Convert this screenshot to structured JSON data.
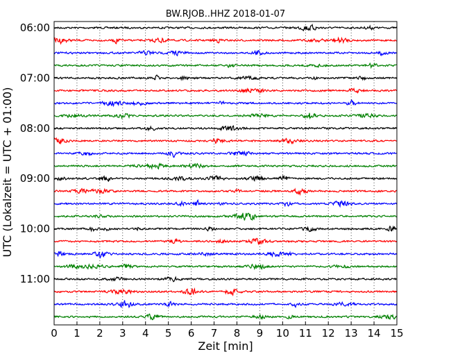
{
  "chart_data": {
    "type": "line",
    "title": "BW.RJOB..HHZ 2018-01-07",
    "xlabel": "Zeit  [min]",
    "ylabel": "UTC (Lokalzeit = UTC + 01:00)",
    "xlim": [
      0,
      15
    ],
    "x_ticks": [
      "0",
      "1",
      "2",
      "3",
      "4",
      "5",
      "6",
      "7",
      "8",
      "9",
      "10",
      "11",
      "12",
      "13",
      "14",
      "15"
    ],
    "y_tick_labels": [
      "06:00",
      "07:00",
      "08:00",
      "09:00",
      "10:00",
      "11:00"
    ],
    "grid": "vertical dotted",
    "trace_interval_min": 15,
    "start_time": "06:00",
    "series_colors": [
      "#000000",
      "#ff0000",
      "#0000ff",
      "#008000"
    ],
    "series": [
      {
        "start": "06:00",
        "color": "#000000"
      },
      {
        "start": "06:15",
        "color": "#ff0000"
      },
      {
        "start": "06:30",
        "color": "#0000ff"
      },
      {
        "start": "06:45",
        "color": "#008000"
      },
      {
        "start": "07:00",
        "color": "#000000"
      },
      {
        "start": "07:15",
        "color": "#ff0000"
      },
      {
        "start": "07:30",
        "color": "#0000ff"
      },
      {
        "start": "07:45",
        "color": "#008000"
      },
      {
        "start": "08:00",
        "color": "#000000"
      },
      {
        "start": "08:15",
        "color": "#ff0000"
      },
      {
        "start": "08:30",
        "color": "#0000ff"
      },
      {
        "start": "08:45",
        "color": "#008000"
      },
      {
        "start": "09:00",
        "color": "#000000"
      },
      {
        "start": "09:15",
        "color": "#ff0000"
      },
      {
        "start": "09:30",
        "color": "#0000ff"
      },
      {
        "start": "09:45",
        "color": "#008000"
      },
      {
        "start": "10:00",
        "color": "#000000"
      },
      {
        "start": "10:15",
        "color": "#ff0000"
      },
      {
        "start": "10:30",
        "color": "#0000ff"
      },
      {
        "start": "10:45",
        "color": "#008000"
      },
      {
        "start": "11:00",
        "color": "#000000"
      },
      {
        "start": "11:15",
        "color": "#ff0000"
      },
      {
        "start": "11:30",
        "color": "#0000ff"
      },
      {
        "start": "11:45",
        "color": "#008000"
      }
    ]
  }
}
